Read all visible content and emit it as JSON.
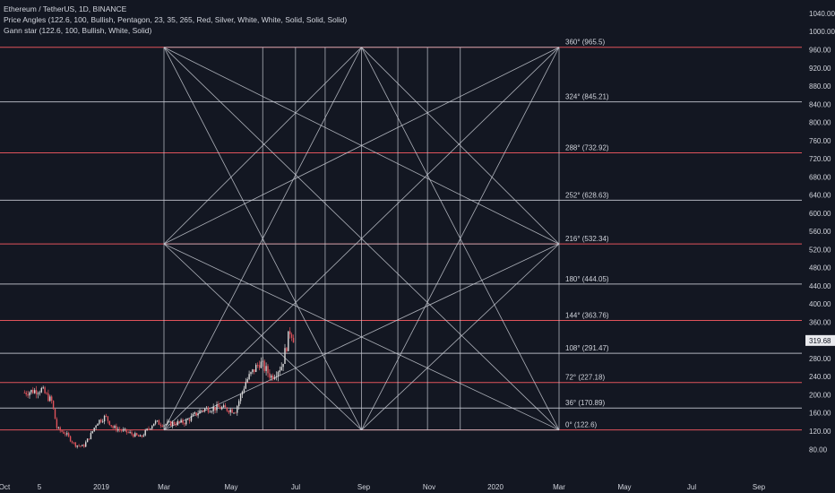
{
  "header": {
    "symbol_line": "Ethereum / TetherUS, 1D, BINANCE",
    "indicator_1": "Price Angles (122.6, 100, Bullish, Pentagon, 23, 35, 265, Red, Silver, White, White, Solid, Solid, Solid)",
    "indicator_2": "Gann star (122.6, 100, Bullish, White, Solid)"
  },
  "colors": {
    "background": "#131722",
    "red_line": "#e0535b",
    "silver_line": "#b0b3bd",
    "gann_line": "#c8cbd3",
    "candle_up": "#d9d9d9",
    "candle_down": "#e0535b",
    "text": "#d1d4dc",
    "last_price_bg": "#e9eaee"
  },
  "chart_data": {
    "type": "candlestick",
    "symbol": "Ethereum / TetherUS",
    "timeframe": "1D",
    "exchange": "BINANCE",
    "y_axis_ticks": [
      "80.00",
      "120.00",
      "160.00",
      "200.00",
      "240.00",
      "280.00",
      "320.00",
      "360.00",
      "400.00",
      "440.00",
      "480.00",
      "520.00",
      "560.00",
      "600.00",
      "640.00",
      "680.00",
      "720.00",
      "760.00",
      "800.00",
      "840.00",
      "880.00",
      "920.00",
      "960.00",
      "1000.00",
      "1040.00"
    ],
    "ylim": [
      60,
      1060
    ],
    "x_axis_ticks": [
      "Oct",
      "5",
      "2019",
      "Mar",
      "May",
      "Jul",
      "Sep",
      "Nov",
      "2020",
      "Mar",
      "May",
      "Jul",
      "Sep"
    ],
    "last_price": "319.68",
    "angle_levels": [
      {
        "label": "0°",
        "value": "122.6",
        "color": "red"
      },
      {
        "label": "36°",
        "value": "170.89",
        "color": "silver"
      },
      {
        "label": "72°",
        "value": "227.18",
        "color": "red"
      },
      {
        "label": "108°",
        "value": "291.47",
        "color": "silver"
      },
      {
        "label": "144°",
        "value": "363.76",
        "color": "red"
      },
      {
        "label": "180°",
        "value": "444.05",
        "color": "silver"
      },
      {
        "label": "216°",
        "value": "532.34",
        "color": "red"
      },
      {
        "label": "252°",
        "value": "628.63",
        "color": "silver"
      },
      {
        "label": "288°",
        "value": "732.92",
        "color": "red"
      },
      {
        "label": "324°",
        "value": "845.21",
        "color": "silver"
      },
      {
        "label": "360°",
        "value": "965.5",
        "color": "red"
      }
    ],
    "gann_star": {
      "low": 122.6,
      "mid": 532.34,
      "high": 965.5,
      "start": "Mar 2019",
      "end": "Mar 2020"
    },
    "price_path": [
      {
        "date": "2018-10-20",
        "close": 205
      },
      {
        "date": "2018-11-05",
        "close": 212
      },
      {
        "date": "2018-11-15",
        "close": 185
      },
      {
        "date": "2018-11-20",
        "close": 125
      },
      {
        "date": "2018-11-28",
        "close": 115
      },
      {
        "date": "2018-12-07",
        "close": 90
      },
      {
        "date": "2018-12-15",
        "close": 86
      },
      {
        "date": "2018-12-22",
        "close": 112
      },
      {
        "date": "2018-12-28",
        "close": 140
      },
      {
        "date": "2019-01-05",
        "close": 152
      },
      {
        "date": "2019-01-12",
        "close": 128
      },
      {
        "date": "2019-01-25",
        "close": 118
      },
      {
        "date": "2019-02-07",
        "close": 106
      },
      {
        "date": "2019-02-20",
        "close": 140
      },
      {
        "date": "2019-03-01",
        "close": 135
      },
      {
        "date": "2019-03-20",
        "close": 140
      },
      {
        "date": "2019-04-05",
        "close": 168
      },
      {
        "date": "2019-04-20",
        "close": 172
      },
      {
        "date": "2019-05-05",
        "close": 165
      },
      {
        "date": "2019-05-15",
        "close": 230
      },
      {
        "date": "2019-05-28",
        "close": 272
      },
      {
        "date": "2019-06-08",
        "close": 240
      },
      {
        "date": "2019-06-18",
        "close": 265
      },
      {
        "date": "2019-06-26",
        "close": 345
      },
      {
        "date": "2019-06-30",
        "close": 320
      }
    ]
  }
}
